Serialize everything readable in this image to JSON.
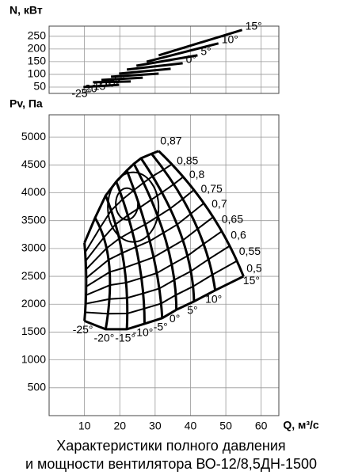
{
  "chart_data": [
    {
      "type": "line",
      "y_label": "N, кВт",
      "ylim": [
        25,
        290
      ],
      "yticks": [
        50,
        100,
        150,
        200,
        250
      ],
      "xlim": [
        0,
        65
      ],
      "grid": true,
      "series": [
        {
          "name": "-25°",
          "x": [
            9.7,
            19.8
          ],
          "y": [
            50,
            59
          ]
        },
        {
          "name": "-20°",
          "x": [
            12.4,
            23.1
          ],
          "y": [
            69,
            72
          ]
        },
        {
          "name": "-15°",
          "x": [
            14.8,
            26.5
          ],
          "y": [
            78,
            87
          ]
        },
        {
          "name": "-10°",
          "x": [
            17.5,
            31
          ],
          "y": [
            91,
            103
          ]
        },
        {
          "name": "-5°",
          "x": [
            19.8,
            34.4
          ],
          "y": [
            103,
            122
          ]
        },
        {
          "name": "0°",
          "x": [
            22,
            37.8
          ],
          "y": [
            119,
            144
          ]
        },
        {
          "name": "5°",
          "x": [
            24.7,
            42
          ],
          "y": [
            134,
            175
          ]
        },
        {
          "name": "10°",
          "x": [
            27.6,
            47.9
          ],
          "y": [
            150,
            222
          ]
        },
        {
          "name": "15°",
          "x": [
            31,
            54.6
          ],
          "y": [
            175,
            275
          ]
        }
      ]
    },
    {
      "type": "line",
      "y_label": "Pv, Па",
      "x_label": "Q, м³/с",
      "xlim": [
        0,
        65
      ],
      "ylim": [
        0,
        5400
      ],
      "xticks": [
        10,
        20,
        30,
        40,
        50,
        60
      ],
      "yticks": [
        500,
        1000,
        1500,
        2000,
        2500,
        3000,
        3500,
        4000,
        4500,
        5000
      ],
      "grid": true,
      "series": [
        {
          "name": "-25°",
          "x": [
            10,
            10.5,
            10
          ],
          "y": [
            3100,
            2400,
            1700
          ]
        },
        {
          "name": "-20°",
          "x": [
            13,
            17,
            16
          ],
          "y": [
            3550,
            2700,
            1550
          ]
        },
        {
          "name": "-15°",
          "x": [
            16,
            21,
            22
          ],
          "y": [
            3950,
            2800,
            1550
          ]
        },
        {
          "name": "-10°",
          "x": [
            19,
            25,
            27
          ],
          "y": [
            4200,
            2900,
            1650
          ]
        },
        {
          "name": "-5°",
          "x": [
            22,
            29,
            32
          ],
          "y": [
            4400,
            3000,
            1750
          ]
        },
        {
          "name": "0°",
          "x": [
            24,
            33,
            36
          ],
          "y": [
            4520,
            3150,
            1900
          ]
        },
        {
          "name": "5°",
          "x": [
            26,
            37,
            41
          ],
          "y": [
            4620,
            3300,
            2050
          ]
        },
        {
          "name": "10°",
          "x": [
            29,
            41,
            47
          ],
          "y": [
            4700,
            3500,
            2250
          ]
        },
        {
          "name": "15°",
          "x": [
            31,
            45,
            55
          ],
          "y": [
            4750,
            3700,
            2500
          ]
        }
      ],
      "efficiency_labels": [
        "0,87",
        "0,85",
        "0,8",
        "0,75",
        "0,7",
        "0,65",
        "0,6",
        "0,55",
        "0,5"
      ]
    }
  ],
  "title_lines": [
    "Характеристики полного давления",
    "и мощности вентилятора ВО-12/8,5ДН-1500"
  ]
}
